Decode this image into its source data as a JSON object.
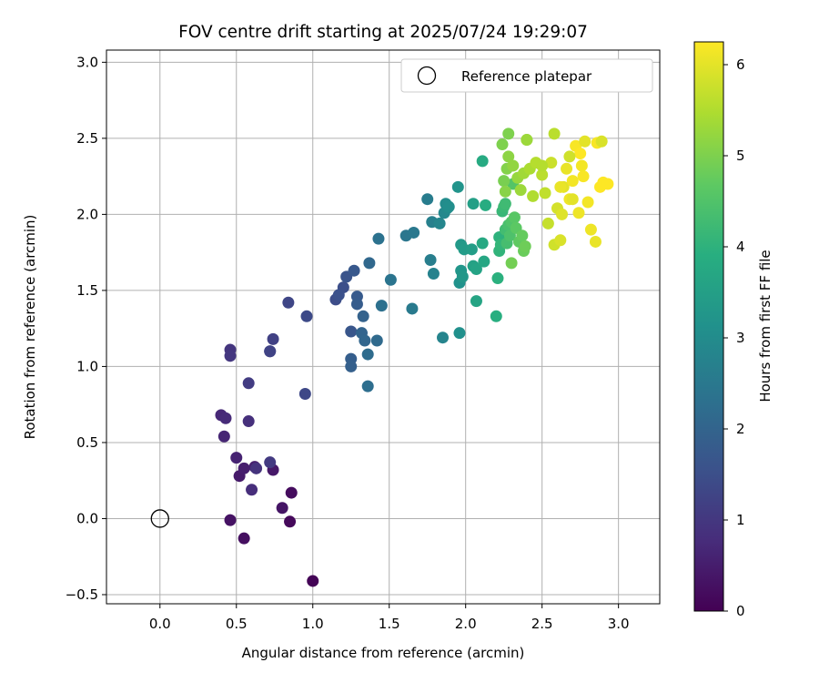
{
  "chart_data": {
    "type": "scatter",
    "title": "FOV centre drift starting at 2025/07/24 19:29:07",
    "xlabel": "Angular distance from reference (arcmin)",
    "ylabel": "Rotation from reference (arcmin)",
    "xlim": [
      -0.35,
      3.27
    ],
    "ylim": [
      -0.56,
      3.08
    ],
    "xticks": [
      0.0,
      0.5,
      1.0,
      1.5,
      2.0,
      2.5,
      3.0
    ],
    "xtick_labels": [
      "0.0",
      "0.5",
      "1.0",
      "1.5",
      "2.0",
      "2.5",
      "3.0"
    ],
    "yticks": [
      -0.5,
      0.0,
      0.5,
      1.0,
      1.5,
      2.0,
      2.5,
      3.0
    ],
    "ytick_labels": [
      "−0.5",
      "0.0",
      "0.5",
      "1.0",
      "1.5",
      "2.0",
      "2.5",
      "3.0"
    ],
    "grid": true,
    "legend": {
      "position": "top-right",
      "entries": [
        "Reference platepar"
      ]
    },
    "reference_point": {
      "x": 0.0,
      "y": 0.0,
      "label": "Reference platepar"
    },
    "colorbar": {
      "label": "Hours from first FF file",
      "range": [
        0,
        6.25
      ],
      "ticks": [
        0,
        1,
        2,
        3,
        4,
        5,
        6
      ],
      "tick_labels": [
        "0",
        "1",
        "2",
        "3",
        "4",
        "5",
        "6"
      ],
      "colormap": "viridis"
    },
    "series": [
      {
        "points": [
          [
            1.0,
            -0.41,
            0.05
          ],
          [
            0.85,
            -0.02,
            0.15
          ],
          [
            0.86,
            0.17,
            0.2
          ],
          [
            0.55,
            -0.13,
            0.25
          ],
          [
            0.46,
            -0.01,
            0.3
          ],
          [
            0.8,
            0.07,
            0.35
          ],
          [
            0.74,
            0.32,
            0.4
          ],
          [
            0.52,
            0.28,
            0.45
          ],
          [
            0.55,
            0.33,
            0.5
          ],
          [
            0.62,
            0.34,
            0.55
          ],
          [
            0.5,
            0.4,
            0.6
          ],
          [
            0.42,
            0.54,
            0.65
          ],
          [
            0.4,
            0.68,
            0.7
          ],
          [
            0.43,
            0.66,
            0.75
          ],
          [
            0.6,
            0.19,
            0.8
          ],
          [
            0.58,
            0.64,
            0.85
          ],
          [
            0.63,
            0.33,
            0.9
          ],
          [
            0.46,
            1.11,
            0.95
          ],
          [
            0.46,
            1.07,
            1.0
          ],
          [
            0.72,
            0.37,
            1.05
          ],
          [
            0.58,
            0.89,
            1.1
          ],
          [
            0.72,
            1.1,
            1.15
          ],
          [
            0.74,
            1.18,
            1.2
          ],
          [
            0.72,
            1.1,
            1.25
          ],
          [
            0.84,
            1.42,
            1.3
          ],
          [
            0.95,
            0.82,
            1.35
          ],
          [
            0.96,
            1.33,
            1.4
          ],
          [
            1.15,
            1.44,
            1.45
          ],
          [
            1.2,
            1.52,
            1.5
          ],
          [
            1.17,
            1.47,
            1.55
          ],
          [
            1.22,
            1.59,
            1.6
          ],
          [
            1.25,
            1.23,
            1.65
          ],
          [
            1.27,
            1.63,
            1.7
          ],
          [
            1.29,
            1.46,
            1.75
          ],
          [
            1.29,
            1.41,
            1.8
          ],
          [
            1.25,
            1.05,
            1.85
          ],
          [
            1.25,
            1.0,
            1.9
          ],
          [
            1.33,
            1.33,
            1.95
          ],
          [
            1.32,
            1.22,
            2.0
          ],
          [
            1.34,
            1.17,
            2.05
          ],
          [
            1.37,
            1.68,
            2.1
          ],
          [
            1.42,
            1.17,
            2.15
          ],
          [
            1.36,
            1.08,
            2.2
          ],
          [
            1.36,
            0.87,
            2.25
          ],
          [
            1.45,
            1.4,
            2.3
          ],
          [
            1.43,
            1.84,
            2.35
          ],
          [
            1.51,
            1.57,
            2.4
          ],
          [
            1.61,
            1.86,
            2.45
          ],
          [
            1.66,
            1.88,
            2.5
          ],
          [
            1.65,
            1.38,
            2.55
          ],
          [
            1.75,
            2.1,
            2.6
          ],
          [
            1.77,
            1.7,
            2.65
          ],
          [
            1.78,
            1.95,
            2.7
          ],
          [
            1.79,
            1.61,
            2.75
          ],
          [
            1.85,
            1.19,
            2.8
          ],
          [
            1.83,
            1.94,
            2.85
          ],
          [
            1.86,
            2.01,
            2.9
          ],
          [
            1.88,
            2.04,
            2.95
          ],
          [
            1.87,
            2.07,
            3.0
          ],
          [
            1.89,
            2.05,
            3.05
          ],
          [
            1.96,
            1.22,
            3.1
          ],
          [
            1.96,
            1.55,
            3.15
          ],
          [
            1.95,
            2.18,
            3.2
          ],
          [
            1.97,
            1.63,
            3.25
          ],
          [
            1.98,
            1.59,
            3.3
          ],
          [
            1.97,
            1.8,
            3.35
          ],
          [
            1.99,
            1.77,
            3.4
          ],
          [
            2.04,
            1.77,
            3.45
          ],
          [
            2.05,
            2.07,
            3.5
          ],
          [
            2.05,
            1.66,
            3.55
          ],
          [
            2.07,
            1.64,
            3.6
          ],
          [
            2.07,
            1.43,
            3.65
          ],
          [
            2.12,
            1.69,
            3.7
          ],
          [
            2.11,
            1.81,
            3.75
          ],
          [
            2.11,
            2.35,
            3.8
          ],
          [
            2.13,
            2.06,
            3.85
          ],
          [
            2.2,
            1.33,
            3.9
          ],
          [
            2.21,
            1.58,
            3.95
          ],
          [
            2.22,
            1.85,
            4.0
          ],
          [
            2.22,
            1.76,
            4.05
          ],
          [
            2.23,
            1.8,
            4.1
          ],
          [
            2.24,
            2.02,
            4.15
          ],
          [
            2.25,
            2.05,
            4.2
          ],
          [
            2.26,
            2.07,
            4.25
          ],
          [
            2.26,
            1.9,
            4.3
          ],
          [
            2.27,
            1.81,
            4.35
          ],
          [
            2.28,
            1.93,
            4.4
          ],
          [
            2.29,
            1.86,
            4.45
          ],
          [
            2.3,
            1.95,
            4.5
          ],
          [
            2.31,
            2.2,
            4.55
          ],
          [
            2.32,
            1.98,
            4.6
          ],
          [
            2.33,
            1.91,
            4.65
          ],
          [
            2.35,
            1.82,
            4.7
          ],
          [
            2.37,
            1.86,
            4.75
          ],
          [
            2.38,
            1.76,
            4.8
          ],
          [
            2.39,
            1.79,
            4.85
          ],
          [
            2.3,
            1.68,
            4.9
          ],
          [
            2.25,
            2.22,
            4.95
          ],
          [
            2.24,
            2.46,
            5.0
          ],
          [
            2.27,
            2.3,
            5.05
          ],
          [
            2.26,
            2.15,
            5.1
          ],
          [
            2.28,
            2.38,
            5.15
          ],
          [
            2.31,
            2.32,
            5.2
          ],
          [
            2.34,
            2.24,
            5.25
          ],
          [
            2.36,
            2.16,
            5.3
          ],
          [
            2.38,
            2.27,
            5.35
          ],
          [
            2.4,
            2.49,
            5.4
          ],
          [
            2.42,
            2.3,
            5.45
          ],
          [
            2.44,
            2.12,
            5.5
          ],
          [
            2.46,
            2.34,
            5.55
          ],
          [
            2.5,
            2.26,
            5.6
          ],
          [
            2.52,
            2.14,
            5.65
          ],
          [
            2.54,
            1.94,
            5.7
          ],
          [
            2.56,
            2.34,
            5.75
          ],
          [
            2.58,
            1.8,
            5.8
          ],
          [
            2.6,
            2.04,
            5.85
          ],
          [
            2.62,
            1.83,
            5.9
          ],
          [
            2.63,
            2.0,
            5.95
          ],
          [
            2.64,
            2.18,
            6.0
          ],
          [
            2.66,
            2.3,
            6.05
          ],
          [
            2.68,
            2.1,
            6.1
          ],
          [
            2.7,
            2.22,
            6.15
          ],
          [
            2.72,
            2.45,
            6.2
          ],
          [
            2.75,
            2.4,
            6.25
          ],
          [
            2.77,
            2.25,
            6.2
          ],
          [
            2.8,
            2.08,
            6.15
          ],
          [
            2.82,
            1.9,
            6.1
          ],
          [
            2.85,
            1.82,
            6.05
          ],
          [
            2.86,
            2.47,
            6.2
          ],
          [
            2.88,
            2.18,
            6.25
          ],
          [
            2.9,
            2.21,
            6.25
          ],
          [
            2.93,
            2.2,
            6.25
          ],
          [
            2.58,
            2.53,
            5.6
          ],
          [
            2.4,
            2.49,
            5.3
          ],
          [
            2.28,
            2.53,
            5.0
          ],
          [
            2.78,
            2.48,
            6.0
          ],
          [
            2.89,
            2.48,
            5.9
          ],
          [
            2.68,
            2.38,
            5.8
          ],
          [
            2.5,
            2.32,
            5.55
          ],
          [
            2.74,
            2.01,
            6.1
          ],
          [
            2.62,
            2.18,
            6.05
          ],
          [
            2.7,
            2.1,
            6.0
          ],
          [
            2.76,
            2.32,
            6.15
          ]
        ]
      }
    ]
  }
}
